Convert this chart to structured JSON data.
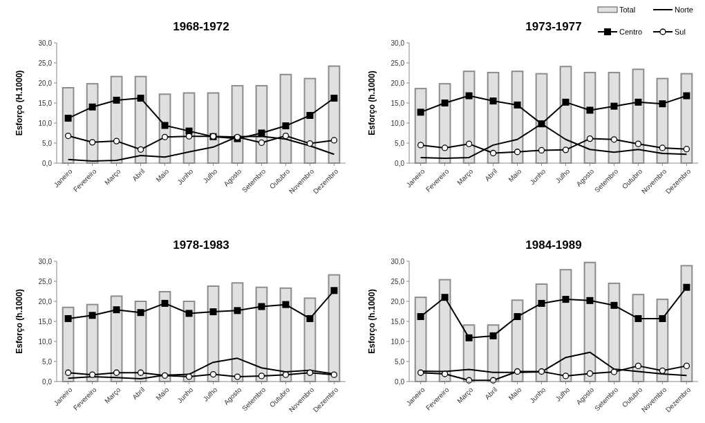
{
  "chart_data": [
    {
      "type": "bar",
      "title": "1968-1972",
      "ylabel": "Esforço (H.1000)",
      "categories": [
        "Janeiro",
        "Fevereiro",
        "Março",
        "Abril",
        "Maio",
        "Junho",
        "Julho",
        "Agosto",
        "Setembro",
        "Outubro",
        "Novembro",
        "Dezembro"
      ],
      "ylim": [
        0,
        30
      ],
      "yticks": [
        {
          "value": 0,
          "label": "0,0"
        },
        {
          "value": 5,
          "label": "5,0"
        },
        {
          "value": 10,
          "label": "10,0"
        },
        {
          "value": 15,
          "label": "15,0"
        },
        {
          "value": 20,
          "label": "20,0"
        },
        {
          "value": 25,
          "label": "25,0"
        },
        {
          "value": 30,
          "label": "30,0"
        }
      ],
      "legend": false,
      "series": [
        {
          "color": "#e0e0e0",
          "values": [
            18.8,
            19.8,
            21.6,
            21.6,
            17.2,
            17.5,
            17.5,
            19.3,
            19.3,
            22.1,
            21.1,
            24.2
          ]
        },
        {
          "type": "line",
          "color": "#000000",
          "marker": "none",
          "values": [
            0.9,
            0.5,
            0.7,
            1.9,
            1.5,
            2.8,
            4.0,
            6.6,
            6.7,
            6.0,
            4.3,
            2.2
          ]
        },
        {
          "type": "line",
          "color": "#000000",
          "marker": "square",
          "values": [
            11.2,
            14.0,
            15.7,
            16.2,
            9.4,
            8.0,
            6.6,
            6.1,
            7.5,
            9.3,
            11.9,
            16.2
          ]
        },
        {
          "type": "line",
          "color": "#000000",
          "marker": "circle",
          "values": [
            6.8,
            5.2,
            5.5,
            3.4,
            6.5,
            6.7,
            6.7,
            6.5,
            5.1,
            6.8,
            4.9,
            5.7
          ]
        }
      ]
    },
    {
      "type": "bar",
      "title": "1973-1977",
      "ylabel": "Esforço (h.1000)",
      "categories": [
        "Janeiro",
        "Fevereiro",
        "Março",
        "Abril",
        "Maio",
        "Junho",
        "Julho",
        "Agosto",
        "Setembro",
        "Outubro",
        "Novembro",
        "Dezembro"
      ],
      "ylim": [
        0,
        30
      ],
      "yticks": [
        {
          "value": 0,
          "label": "0,0"
        },
        {
          "value": 5,
          "label": "5,0"
        },
        {
          "value": 10,
          "label": "10,0"
        },
        {
          "value": 15,
          "label": "15,0"
        },
        {
          "value": 20,
          "label": "20,0"
        },
        {
          "value": 25,
          "label": "25,0"
        },
        {
          "value": 30,
          "label": "30,0"
        }
      ],
      "legend": "top right",
      "series": [
        {
          "name": "Total",
          "color": "#e0e0e0",
          "values": [
            18.6,
            19.8,
            22.9,
            22.6,
            22.9,
            22.3,
            24.1,
            22.6,
            22.6,
            23.4,
            21.1,
            22.3
          ]
        },
        {
          "name": "Norte",
          "type": "line",
          "color": "#000000",
          "marker": "none",
          "values": [
            1.4,
            1.2,
            1.4,
            4.5,
            5.9,
            9.8,
            5.9,
            3.4,
            2.7,
            3.4,
            2.4,
            2.2
          ]
        },
        {
          "name": "Centro",
          "type": "line",
          "color": "#000000",
          "marker": "square",
          "values": [
            12.7,
            15.0,
            16.8,
            15.5,
            14.5,
            9.8,
            15.2,
            13.2,
            14.2,
            15.2,
            14.8,
            16.8
          ]
        },
        {
          "name": "Sul",
          "type": "line",
          "color": "#000000",
          "marker": "circle",
          "values": [
            4.5,
            3.8,
            4.8,
            2.5,
            2.8,
            3.2,
            3.3,
            6.1,
            5.9,
            4.8,
            3.8,
            3.5
          ]
        }
      ]
    },
    {
      "type": "bar",
      "title": "1978-1983",
      "ylabel": "Esforço (h.1000)",
      "categories": [
        "Janeiro",
        "Fevereiro",
        "Março",
        "Abril",
        "Maio",
        "Junho",
        "Julho",
        "Agosto",
        "Setembro",
        "Outubro",
        "Novembro",
        "Dezembro"
      ],
      "ylim": [
        0,
        30
      ],
      "yticks": [
        {
          "value": 0,
          "label": "0,0"
        },
        {
          "value": 5,
          "label": "5,0"
        },
        {
          "value": 10,
          "label": "10,0"
        },
        {
          "value": 15,
          "label": "15,0"
        },
        {
          "value": 20,
          "label": "20,0"
        },
        {
          "value": 25,
          "label": "25,0"
        },
        {
          "value": 30,
          "label": "30,0"
        }
      ],
      "legend": false,
      "series": [
        {
          "color": "#e0e0e0",
          "values": [
            18.5,
            19.2,
            21.3,
            20.0,
            22.4,
            20.0,
            23.8,
            24.6,
            23.5,
            23.3,
            20.8,
            26.6
          ]
        },
        {
          "type": "line",
          "color": "#000000",
          "marker": "none",
          "values": [
            0.8,
            1.2,
            1.0,
            0.7,
            1.6,
            1.8,
            4.8,
            5.8,
            3.4,
            2.4,
            2.8,
            1.9
          ]
        },
        {
          "type": "line",
          "color": "#000000",
          "marker": "square",
          "values": [
            15.7,
            16.5,
            17.9,
            17.2,
            19.5,
            17.0,
            17.4,
            17.7,
            18.7,
            19.2,
            15.7,
            22.7
          ]
        },
        {
          "type": "line",
          "color": "#000000",
          "marker": "circle",
          "values": [
            2.2,
            1.7,
            2.2,
            2.2,
            1.5,
            1.2,
            1.8,
            1.2,
            1.4,
            1.7,
            2.2,
            1.7
          ]
        }
      ]
    },
    {
      "type": "bar",
      "title": "1984-1989",
      "ylabel": "Esforço (h.1000)",
      "categories": [
        "Janeiro",
        "Fevereiro",
        "Março",
        "Abril",
        "Maio",
        "Junho",
        "Julho",
        "Agosto",
        "Setembro",
        "Outubro",
        "Novembro",
        "Dezembro"
      ],
      "ylim": [
        0,
        30
      ],
      "yticks": [
        {
          "value": 0,
          "label": "0,0"
        },
        {
          "value": 5,
          "label": "5,0"
        },
        {
          "value": 10,
          "label": "10,0"
        },
        {
          "value": 15,
          "label": "15,0"
        },
        {
          "value": 20,
          "label": "20,0"
        },
        {
          "value": 25,
          "label": "25,0"
        },
        {
          "value": 30,
          "label": "30,0"
        }
      ],
      "legend": false,
      "series": [
        {
          "color": "#e0e0e0",
          "values": [
            21.0,
            25.4,
            14.1,
            14.1,
            20.3,
            24.3,
            27.9,
            29.7,
            24.5,
            21.7,
            20.5,
            28.9
          ]
        },
        {
          "type": "line",
          "color": "#000000",
          "marker": "none",
          "values": [
            2.6,
            2.5,
            3.0,
            2.3,
            2.3,
            2.4,
            6.0,
            7.3,
            3.1,
            2.5,
            1.9,
            1.5
          ]
        },
        {
          "type": "line",
          "color": "#000000",
          "marker": "square",
          "values": [
            16.2,
            21.0,
            10.9,
            11.4,
            16.2,
            19.5,
            20.5,
            20.2,
            19.0,
            15.7,
            15.7,
            23.5
          ]
        },
        {
          "type": "line",
          "color": "#000000",
          "marker": "circle",
          "values": [
            2.2,
            1.9,
            0.3,
            0.3,
            2.5,
            2.5,
            1.4,
            2.0,
            2.4,
            3.9,
            2.7,
            3.9
          ]
        }
      ]
    }
  ]
}
